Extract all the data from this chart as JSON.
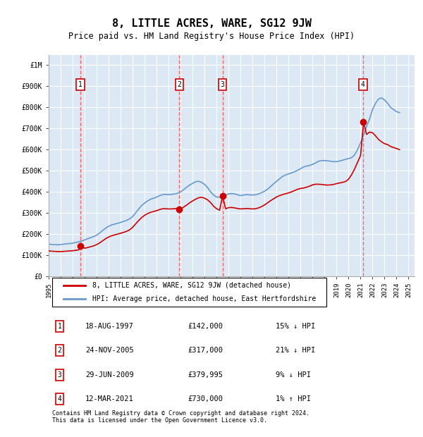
{
  "title": "8, LITTLE ACRES, WARE, SG12 9JW",
  "subtitle": "Price paid vs. HM Land Registry's House Price Index (HPI)",
  "plot_bg_color": "#dce9f5",
  "ylim": [
    0,
    1050000
  ],
  "xlim_start": 1995.0,
  "xlim_end": 2025.5,
  "yticks": [
    0,
    100000,
    200000,
    300000,
    400000,
    500000,
    600000,
    700000,
    800000,
    900000,
    1000000
  ],
  "ytick_labels": [
    "£0",
    "£100K",
    "£200K",
    "£300K",
    "£400K",
    "£500K",
    "£600K",
    "£700K",
    "£800K",
    "£900K",
    "£1M"
  ],
  "sale_dates": [
    1997.63,
    2005.9,
    2009.49,
    2021.19
  ],
  "sale_prices": [
    142000,
    317000,
    379995,
    730000
  ],
  "sale_numbers": [
    "1",
    "2",
    "3",
    "4"
  ],
  "red_line_color": "#cc0000",
  "blue_line_color": "#6699cc",
  "marker_color": "#cc0000",
  "dashed_line_color": "#ff6666",
  "legend_label_red": "8, LITTLE ACRES, WARE, SG12 9JW (detached house)",
  "legend_label_blue": "HPI: Average price, detached house, East Hertfordshire",
  "table_entries": [
    {
      "num": "1",
      "date": "18-AUG-1997",
      "price": "£142,000",
      "pct": "15%",
      "dir": "↓",
      "label": "HPI"
    },
    {
      "num": "2",
      "date": "24-NOV-2005",
      "price": "£317,000",
      "pct": "21%",
      "dir": "↓",
      "label": "HPI"
    },
    {
      "num": "3",
      "date": "29-JUN-2009",
      "price": "£379,995",
      "pct": "9%",
      "dir": "↓",
      "label": "HPI"
    },
    {
      "num": "4",
      "date": "12-MAR-2021",
      "price": "£730,000",
      "pct": "1%",
      "dir": "↑",
      "label": "HPI"
    }
  ],
  "footer": "Contains HM Land Registry data © Crown copyright and database right 2024.\nThis data is licensed under the Open Government Licence v3.0.",
  "hpi_years": [
    1995.0,
    1995.25,
    1995.5,
    1995.75,
    1996.0,
    1996.25,
    1996.5,
    1996.75,
    1997.0,
    1997.25,
    1997.5,
    1997.75,
    1998.0,
    1998.25,
    1998.5,
    1998.75,
    1999.0,
    1999.25,
    1999.5,
    1999.75,
    2000.0,
    2000.25,
    2000.5,
    2000.75,
    2001.0,
    2001.25,
    2001.5,
    2001.75,
    2002.0,
    2002.25,
    2002.5,
    2002.75,
    2003.0,
    2003.25,
    2003.5,
    2003.75,
    2004.0,
    2004.25,
    2004.5,
    2004.75,
    2005.0,
    2005.25,
    2005.5,
    2005.75,
    2006.0,
    2006.25,
    2006.5,
    2006.75,
    2007.0,
    2007.25,
    2007.5,
    2007.75,
    2008.0,
    2008.25,
    2008.5,
    2008.75,
    2009.0,
    2009.25,
    2009.5,
    2009.75,
    2010.0,
    2010.25,
    2010.5,
    2010.75,
    2011.0,
    2011.25,
    2011.5,
    2011.75,
    2012.0,
    2012.25,
    2012.5,
    2012.75,
    2013.0,
    2013.25,
    2013.5,
    2013.75,
    2014.0,
    2014.25,
    2014.5,
    2014.75,
    2015.0,
    2015.25,
    2015.5,
    2015.75,
    2016.0,
    2016.25,
    2016.5,
    2016.75,
    2017.0,
    2017.25,
    2017.5,
    2017.75,
    2018.0,
    2018.25,
    2018.5,
    2018.75,
    2019.0,
    2019.25,
    2019.5,
    2019.75,
    2020.0,
    2020.25,
    2020.5,
    2020.75,
    2021.0,
    2021.25,
    2021.5,
    2021.75,
    2022.0,
    2022.25,
    2022.5,
    2022.75,
    2023.0,
    2023.25,
    2023.5,
    2023.75,
    2024.0,
    2024.25
  ],
  "hpi_values": [
    152000,
    151000,
    150000,
    149000,
    150000,
    152000,
    154000,
    155000,
    157000,
    160000,
    163000,
    167000,
    172000,
    178000,
    183000,
    188000,
    195000,
    205000,
    217000,
    228000,
    237000,
    243000,
    247000,
    251000,
    255000,
    260000,
    265000,
    272000,
    283000,
    300000,
    318000,
    335000,
    347000,
    357000,
    365000,
    370000,
    375000,
    382000,
    387000,
    388000,
    387000,
    388000,
    390000,
    393000,
    400000,
    410000,
    422000,
    432000,
    440000,
    448000,
    450000,
    445000,
    435000,
    420000,
    400000,
    385000,
    375000,
    375000,
    380000,
    385000,
    390000,
    392000,
    390000,
    386000,
    382000,
    385000,
    387000,
    386000,
    385000,
    386000,
    390000,
    396000,
    403000,
    413000,
    425000,
    438000,
    450000,
    462000,
    473000,
    480000,
    485000,
    490000,
    495000,
    502000,
    510000,
    518000,
    522000,
    525000,
    530000,
    537000,
    545000,
    548000,
    548000,
    547000,
    545000,
    543000,
    543000,
    546000,
    550000,
    554000,
    558000,
    562000,
    575000,
    600000,
    632000,
    670000,
    710000,
    745000,
    790000,
    820000,
    840000,
    845000,
    835000,
    820000,
    800000,
    790000,
    780000,
    775000
  ],
  "red_years": [
    1995.0,
    1995.25,
    1995.5,
    1995.75,
    1996.0,
    1996.25,
    1996.5,
    1996.75,
    1997.0,
    1997.25,
    1997.5,
    1997.75,
    1998.0,
    1998.25,
    1998.5,
    1998.75,
    1999.0,
    1999.25,
    1999.5,
    1999.75,
    2000.0,
    2000.25,
    2000.5,
    2000.75,
    2001.0,
    2001.25,
    2001.5,
    2001.75,
    2002.0,
    2002.25,
    2002.5,
    2002.75,
    2003.0,
    2003.25,
    2003.5,
    2003.75,
    2004.0,
    2004.25,
    2004.5,
    2004.75,
    2005.0,
    2005.25,
    2005.5,
    2005.75,
    2006.0,
    2006.25,
    2006.5,
    2006.75,
    2007.0,
    2007.25,
    2007.5,
    2007.75,
    2008.0,
    2008.25,
    2008.5,
    2008.75,
    2009.0,
    2009.25,
    2009.5,
    2009.75,
    2010.0,
    2010.25,
    2010.5,
    2010.75,
    2011.0,
    2011.25,
    2011.5,
    2011.75,
    2012.0,
    2012.25,
    2012.5,
    2012.75,
    2013.0,
    2013.25,
    2013.5,
    2013.75,
    2014.0,
    2014.25,
    2014.5,
    2014.75,
    2015.0,
    2015.25,
    2015.5,
    2015.75,
    2016.0,
    2016.25,
    2016.5,
    2016.75,
    2017.0,
    2017.25,
    2017.5,
    2017.75,
    2018.0,
    2018.25,
    2018.5,
    2018.75,
    2019.0,
    2019.25,
    2019.5,
    2019.75,
    2020.0,
    2020.25,
    2020.5,
    2020.75,
    2021.0,
    2021.25,
    2021.5,
    2021.75,
    2022.0,
    2022.25,
    2022.5,
    2022.75,
    2023.0,
    2023.25,
    2023.5,
    2023.75,
    2024.0,
    2024.25
  ],
  "red_values": [
    120000,
    119000,
    118000,
    117000,
    117000,
    118000,
    119000,
    120000,
    121000,
    123000,
    125000,
    142000,
    133000,
    136000,
    140000,
    144000,
    150000,
    158000,
    168000,
    178000,
    186000,
    192000,
    196000,
    200000,
    204000,
    208000,
    213000,
    220000,
    232000,
    248000,
    264000,
    278000,
    289000,
    297000,
    303000,
    307000,
    311000,
    316000,
    320000,
    320000,
    319000,
    319000,
    320000,
    322000,
    317000,
    328000,
    337000,
    348000,
    357000,
    365000,
    372000,
    374000,
    370000,
    362000,
    349000,
    332000,
    320000,
    313000,
    380000,
    320000,
    325000,
    326000,
    324000,
    321000,
    319000,
    320000,
    321000,
    320000,
    319000,
    320000,
    324000,
    330000,
    338000,
    348000,
    358000,
    367000,
    376000,
    382000,
    387000,
    391000,
    395000,
    400000,
    406000,
    412000,
    416000,
    418000,
    422000,
    427000,
    433000,
    436000,
    436000,
    435000,
    433000,
    432000,
    433000,
    435000,
    439000,
    442000,
    445000,
    449000,
    460000,
    481000,
    508000,
    540000,
    572000,
    730000,
    672000,
    683000,
    680000,
    665000,
    648000,
    637000,
    628000,
    624000,
    615000,
    610000,
    605000,
    600000
  ]
}
